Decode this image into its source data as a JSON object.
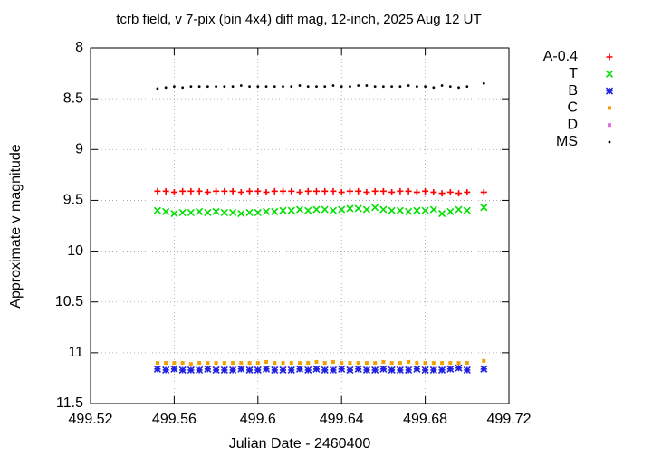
{
  "chart_data": {
    "type": "scatter",
    "title": "tcrb field, v 7-pix (bin 4x4) diff mag, 12-inch, 2025 Aug 12 UT",
    "x_label": "Julian Date - 2460400",
    "y_label": "Approximate v magnitude",
    "xlim": [
      499.52,
      499.72
    ],
    "xticks": [
      499.52,
      499.56,
      499.6,
      499.64,
      499.68,
      499.72
    ],
    "ylim": [
      11.5,
      8
    ],
    "yticks": [
      8,
      8.5,
      9,
      9.5,
      10,
      10.5,
      11,
      11.5
    ],
    "grid": true,
    "legend": "outside-right",
    "x": [
      499.552,
      499.556,
      499.56,
      499.564,
      499.568,
      499.572,
      499.576,
      499.58,
      499.584,
      499.588,
      499.592,
      499.596,
      499.6,
      499.604,
      499.608,
      499.612,
      499.616,
      499.62,
      499.624,
      499.628,
      499.632,
      499.636,
      499.64,
      499.644,
      499.648,
      499.652,
      499.656,
      499.66,
      499.664,
      499.668,
      499.672,
      499.676,
      499.68,
      499.684,
      499.688,
      499.692,
      499.696,
      499.7,
      499.708
    ],
    "series": [
      {
        "name": "A-0.4",
        "color": "#ff0000",
        "marker": "plus",
        "values": [
          9.41,
          9.41,
          9.42,
          9.41,
          9.41,
          9.41,
          9.42,
          9.41,
          9.41,
          9.41,
          9.42,
          9.41,
          9.41,
          9.42,
          9.41,
          9.41,
          9.41,
          9.42,
          9.41,
          9.41,
          9.41,
          9.41,
          9.42,
          9.41,
          9.41,
          9.42,
          9.41,
          9.41,
          9.42,
          9.41,
          9.41,
          9.42,
          9.41,
          9.42,
          9.43,
          9.42,
          9.43,
          9.42,
          9.42
        ]
      },
      {
        "name": "T",
        "color": "#00e000",
        "marker": "cross",
        "values": [
          9.6,
          9.61,
          9.63,
          9.62,
          9.62,
          9.61,
          9.62,
          9.61,
          9.62,
          9.62,
          9.63,
          9.62,
          9.62,
          9.61,
          9.61,
          9.6,
          9.6,
          9.59,
          9.6,
          9.59,
          9.59,
          9.6,
          9.59,
          9.58,
          9.58,
          9.59,
          9.57,
          9.59,
          9.6,
          9.6,
          9.61,
          9.6,
          9.6,
          9.59,
          9.63,
          9.61,
          9.59,
          9.6,
          9.57
        ]
      },
      {
        "name": "B",
        "color": "#2020e0",
        "marker": "star",
        "values": [
          11.16,
          11.17,
          11.16,
          11.17,
          11.17,
          11.17,
          11.16,
          11.17,
          11.17,
          11.17,
          11.16,
          11.17,
          11.17,
          11.16,
          11.17,
          11.17,
          11.17,
          11.16,
          11.17,
          11.16,
          11.17,
          11.17,
          11.16,
          11.17,
          11.16,
          11.17,
          11.17,
          11.16,
          11.17,
          11.17,
          11.17,
          11.16,
          11.17,
          11.17,
          11.17,
          11.16,
          11.15,
          11.17,
          11.16
        ]
      },
      {
        "name": "C",
        "color": "#f0a000",
        "marker": "square",
        "values": [
          11.1,
          11.1,
          11.1,
          11.1,
          11.11,
          11.1,
          11.1,
          11.1,
          11.1,
          11.1,
          11.1,
          11.1,
          11.1,
          11.09,
          11.1,
          11.1,
          11.1,
          11.1,
          11.1,
          11.09,
          11.1,
          11.09,
          11.1,
          11.1,
          11.1,
          11.1,
          11.1,
          11.09,
          11.1,
          11.1,
          11.09,
          11.1,
          11.1,
          11.1,
          11.1,
          11.1,
          11.1,
          11.1,
          11.08
        ]
      },
      {
        "name": "D",
        "color": "#e070e0",
        "marker": "square",
        "values": [
          null,
          null,
          null,
          null,
          null,
          null,
          null,
          null,
          null,
          null,
          null,
          null,
          null,
          null,
          null,
          null,
          null,
          null,
          null,
          null,
          null,
          null,
          null,
          null,
          null,
          null,
          null,
          null,
          null,
          null,
          null,
          null,
          null,
          null,
          null,
          null,
          null,
          null,
          null
        ]
      },
      {
        "name": "MS",
        "color": "#000000",
        "marker": "dot",
        "values": [
          8.4,
          8.39,
          8.38,
          8.39,
          8.38,
          8.38,
          8.38,
          8.38,
          8.38,
          8.38,
          8.37,
          8.38,
          8.38,
          8.38,
          8.38,
          8.38,
          8.38,
          8.37,
          8.38,
          8.38,
          8.38,
          8.37,
          8.38,
          8.38,
          8.37,
          8.37,
          8.38,
          8.38,
          8.38,
          8.38,
          8.37,
          8.38,
          8.38,
          8.39,
          8.37,
          8.38,
          8.39,
          8.38,
          8.35
        ]
      }
    ]
  }
}
